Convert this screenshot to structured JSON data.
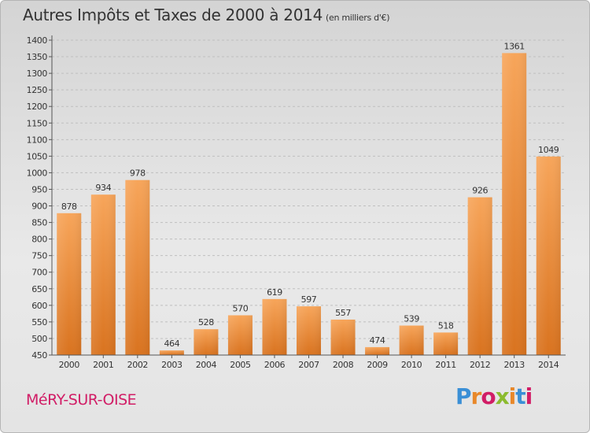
{
  "header": {
    "title": "Autres Impôts et Taxes de 2000 à 2014",
    "subtitle": "(en milliers d'€)"
  },
  "footer": {
    "commune": "MéRY-SUR-OISE",
    "logo_text": "Proxiti",
    "logo_colors": [
      "#3a8fd6",
      "#e8882a",
      "#d11d66",
      "#8bbb2e",
      "#e8882a",
      "#3a8fd6",
      "#d11d66"
    ]
  },
  "chart_data": {
    "type": "bar",
    "categories": [
      "2000",
      "2001",
      "2002",
      "2003",
      "2004",
      "2005",
      "2006",
      "2007",
      "2008",
      "2009",
      "2010",
      "2011",
      "2012",
      "2013",
      "2014"
    ],
    "values": [
      878,
      934,
      978,
      464,
      528,
      570,
      619,
      597,
      557,
      474,
      539,
      518,
      926,
      1361,
      1049
    ],
    "ylim": [
      450,
      1400
    ],
    "yticks": [
      450,
      500,
      550,
      600,
      650,
      700,
      750,
      800,
      850,
      900,
      950,
      1000,
      1050,
      1100,
      1150,
      1200,
      1250,
      1300,
      1350,
      1400
    ],
    "grid": "horizontal dashed",
    "bar_color_top": "#f7a55a",
    "bar_color_bottom": "#d9731f",
    "colors": {
      "axis": "#555555",
      "grid": "#bfbfbf",
      "text": "#333333"
    }
  }
}
